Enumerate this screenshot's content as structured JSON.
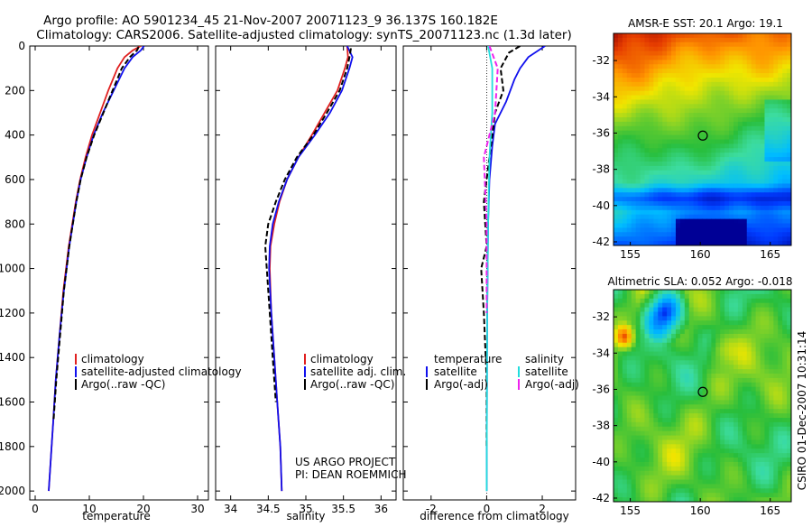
{
  "title_line1": "Argo profile: AO 5901234_45 21-Nov-2007 20071123_9 36.137S 160.182E",
  "title_line2": "Climatology: CARS2006. Satellite-adjusted climatology: synTS_20071123.nc (1.3d later)",
  "side_stamp": "CSIRO 01-Dec-2007 10:31:14",
  "project_line1": "US ARGO PROJECT",
  "project_line2": "PI: DEAN ROEMMICH",
  "colors": {
    "climatology": "#e02020",
    "satellite": "#1010ee",
    "argo": "#000000",
    "sal_satellite": "#22dddd",
    "sal_argo": "#ee22ee"
  },
  "chart_data": [
    {
      "type": "line",
      "xlabel": "temperature",
      "xlim": [
        -1,
        32
      ],
      "xticks": [
        0,
        10,
        20,
        30
      ],
      "ylim": [
        2040,
        0
      ],
      "yticks": [
        0,
        200,
        400,
        600,
        800,
        1000,
        1200,
        1400,
        1600,
        1800,
        2000
      ],
      "legend": [
        "climatology",
        "satellite-adjusted climatology",
        "Argo(..raw -QC)"
      ],
      "series": [
        {
          "name": "climatology",
          "style": "solid",
          "color": "#e02020",
          "x": [
            19.5,
            18.0,
            16.5,
            15.2,
            13.5,
            12.0,
            10.5,
            9.3,
            8.3,
            7.5,
            6.2,
            5.2,
            4.5,
            3.8,
            3.3,
            2.9,
            2.5
          ],
          "y": [
            0,
            20,
            50,
            100,
            200,
            300,
            400,
            500,
            600,
            700,
            900,
            1100,
            1300,
            1500,
            1700,
            1850,
            2000
          ]
        },
        {
          "name": "satellite-adjusted climatology",
          "style": "solid",
          "color": "#1010ee",
          "x": [
            20.1,
            19.5,
            18.0,
            16.5,
            14.5,
            12.5,
            10.8,
            9.5,
            8.4,
            7.6,
            6.3,
            5.3,
            4.5,
            3.8,
            3.3,
            2.9,
            2.5
          ],
          "y": [
            0,
            20,
            50,
            100,
            200,
            300,
            400,
            500,
            600,
            700,
            900,
            1100,
            1300,
            1500,
            1700,
            1850,
            2000
          ]
        },
        {
          "name": "Argo(..raw -QC)",
          "style": "dashed",
          "color": "#000000",
          "x": [
            19.1,
            18.8,
            17.5,
            16.0,
            14.3,
            12.6,
            10.9,
            9.5,
            8.4,
            7.6,
            6.3,
            5.3,
            4.6,
            3.9,
            3.4
          ],
          "y": [
            5,
            20,
            50,
            100,
            200,
            300,
            400,
            500,
            600,
            700,
            900,
            1100,
            1300,
            1500,
            1680
          ]
        }
      ]
    },
    {
      "type": "line",
      "xlabel": "salinity",
      "xlim": [
        33.8,
        36.2
      ],
      "xticks": [
        34,
        34.5,
        35,
        35.5,
        36
      ],
      "ylim": [
        2040,
        0
      ],
      "legend": [
        "climatology",
        "satellite adj. clim.",
        "Argo(..raw -QC)"
      ],
      "series": [
        {
          "name": "climatology",
          "style": "solid",
          "color": "#e02020",
          "x": [
            35.55,
            35.56,
            35.52,
            35.42,
            35.25,
            35.08,
            34.9,
            34.75,
            34.65,
            34.58,
            34.53,
            34.52,
            34.54,
            34.58,
            34.62,
            34.66,
            34.68
          ],
          "y": [
            0,
            50,
            100,
            200,
            300,
            400,
            500,
            600,
            700,
            800,
            900,
            1000,
            1200,
            1400,
            1600,
            1800,
            2000
          ]
        },
        {
          "name": "satellite adj. clim.",
          "style": "solid",
          "color": "#1010ee",
          "x": [
            35.55,
            35.62,
            35.58,
            35.48,
            35.32,
            35.12,
            34.9,
            34.75,
            34.64,
            34.56,
            34.52,
            34.51,
            34.54,
            34.58,
            34.62,
            34.66,
            34.68
          ],
          "y": [
            0,
            50,
            100,
            200,
            300,
            400,
            500,
            600,
            700,
            800,
            900,
            1000,
            1200,
            1400,
            1600,
            1800,
            2000
          ]
        },
        {
          "name": "Argo(..raw -QC)",
          "style": "dashed",
          "color": "#000000",
          "x": [
            35.6,
            35.58,
            35.55,
            35.45,
            35.28,
            35.1,
            34.88,
            34.72,
            34.6,
            34.5,
            34.46,
            34.48,
            34.52,
            34.56,
            34.6
          ],
          "y": [
            10,
            50,
            100,
            200,
            300,
            400,
            500,
            600,
            700,
            800,
            900,
            1000,
            1200,
            1400,
            1600
          ]
        }
      ]
    },
    {
      "type": "line",
      "xlabel": "difference from climatology",
      "xlim": [
        -3,
        3.2
      ],
      "xticks": [
        -2,
        0,
        2
      ],
      "ylim": [
        2040,
        0
      ],
      "legend": [
        "temperature",
        "satellite",
        "Argo(-adj)",
        "salinity",
        "satellite",
        "Argo(-adj)"
      ],
      "series": [
        {
          "name": "satellite",
          "group": "temperature",
          "style": "solid",
          "color": "#1010ee",
          "x": [
            2.1,
            1.5,
            1.2,
            1.0,
            0.7,
            0.3,
            0.2,
            0.1,
            0.05,
            0.02,
            0.0
          ],
          "y": [
            0,
            50,
            100,
            150,
            250,
            350,
            450,
            600,
            800,
            1200,
            2000
          ]
        },
        {
          "name": "Argo(-adj)",
          "group": "temperature",
          "style": "dashed",
          "color": "#000000",
          "x": [
            1.2,
            0.8,
            0.5,
            0.6,
            0.3,
            0.1,
            -0.1,
            0.0,
            -0.2,
            -0.1,
            0.0,
            0.0
          ],
          "y": [
            0,
            30,
            100,
            200,
            300,
            500,
            700,
            900,
            1000,
            1200,
            1500,
            1800
          ]
        },
        {
          "name": "satellite",
          "group": "salinity",
          "style": "solid",
          "color": "#22dddd",
          "x": [
            0.05,
            0.2,
            0.2,
            0.1,
            0.05,
            0.02,
            0.0
          ],
          "y": [
            0,
            100,
            300,
            500,
            800,
            1200,
            2000
          ]
        },
        {
          "name": "Argo(-adj)",
          "group": "salinity",
          "style": "dashed",
          "color": "#ee22ee",
          "x": [
            0.1,
            0.4,
            0.3,
            -0.1,
            0.0,
            0.0
          ],
          "y": [
            0,
            100,
            300,
            500,
            800,
            1200
          ]
        }
      ]
    },
    {
      "type": "heatmap",
      "title": "AMSR-E SST: 20.1  Argo: 19.1",
      "xticks": [
        155,
        160,
        165
      ],
      "yticks": [
        -32,
        -34,
        -36,
        -38,
        -40,
        -42
      ],
      "xlim": [
        153.8,
        166.5
      ],
      "ylim": [
        -42.2,
        -30.5
      ],
      "marker": {
        "lon": 160.18,
        "lat": -36.14
      }
    },
    {
      "type": "heatmap",
      "title": "Altimetric SLA: 0.052  Argo: -0.018",
      "xticks": [
        155,
        160,
        165
      ],
      "yticks": [
        -32,
        -34,
        -36,
        -38,
        -40,
        -42
      ],
      "xlim": [
        153.8,
        166.5
      ],
      "ylim": [
        -42.2,
        -30.5
      ],
      "marker": {
        "lon": 160.18,
        "lat": -36.14
      }
    }
  ]
}
